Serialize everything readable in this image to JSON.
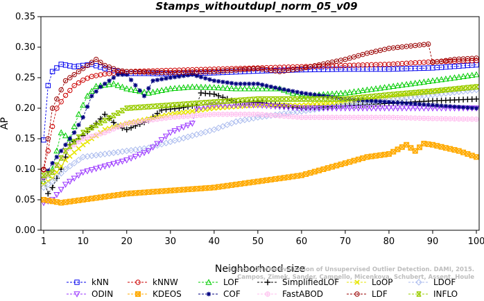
{
  "chart_data": {
    "type": "line",
    "title": "Stamps_withoutdupl_norm_05_v09",
    "xlabel": "Neighborhood size",
    "ylabel": "AP",
    "xlim": [
      1,
      100
    ],
    "ylim": [
      0,
      0.35
    ],
    "x_ticks": [
      1,
      10,
      20,
      30,
      40,
      50,
      60,
      70,
      80,
      90,
      100
    ],
    "y_ticks": [
      "0.00",
      "0.05",
      "0.10",
      "0.15",
      "0.20",
      "0.25",
      "0.30",
      "0.35"
    ],
    "grid": false,
    "legend_position": "bottom",
    "watermark": [
      "Source: On the Evaluation of Unsupervised Outlier Detection. DAMI, 2015.",
      "Campos, Zimek, Sander, Campello, Micenkova, Schubert, Assent, Houle"
    ],
    "series": [
      {
        "name": "kNN",
        "color": "#0000ee",
        "marker": "square",
        "points": [
          [
            1,
            0.148
          ],
          [
            2,
            0.237
          ],
          [
            3,
            0.26
          ],
          [
            5,
            0.272
          ],
          [
            8,
            0.268
          ],
          [
            10,
            0.27
          ],
          [
            12,
            0.272
          ],
          [
            15,
            0.265
          ],
          [
            18,
            0.26
          ],
          [
            20,
            0.257
          ],
          [
            25,
            0.257
          ],
          [
            30,
            0.256
          ],
          [
            40,
            0.258
          ],
          [
            50,
            0.261
          ],
          [
            60,
            0.263
          ],
          [
            70,
            0.264
          ],
          [
            80,
            0.264
          ],
          [
            90,
            0.266
          ],
          [
            100,
            0.271
          ]
        ]
      },
      {
        "name": "kNNW",
        "color": "#cc0000",
        "marker": "circle",
        "points": [
          [
            1,
            0.099
          ],
          [
            2,
            0.13
          ],
          [
            3,
            0.17
          ],
          [
            4,
            0.2
          ],
          [
            6,
            0.221
          ],
          [
            8,
            0.237
          ],
          [
            10,
            0.246
          ],
          [
            12,
            0.252
          ],
          [
            15,
            0.256
          ],
          [
            18,
            0.258
          ],
          [
            20,
            0.26
          ],
          [
            30,
            0.262
          ],
          [
            40,
            0.264
          ],
          [
            50,
            0.266
          ],
          [
            60,
            0.268
          ],
          [
            70,
            0.27
          ],
          [
            80,
            0.272
          ],
          [
            90,
            0.276
          ],
          [
            100,
            0.278
          ]
        ]
      },
      {
        "name": "LOF",
        "color": "#00cc00",
        "marker": "triangle-up",
        "points": [
          [
            1,
            0.08
          ],
          [
            3,
            0.1
          ],
          [
            5,
            0.16
          ],
          [
            7,
            0.15
          ],
          [
            9,
            0.19
          ],
          [
            11,
            0.22
          ],
          [
            13,
            0.236
          ],
          [
            15,
            0.238
          ],
          [
            17,
            0.24
          ],
          [
            20,
            0.232
          ],
          [
            25,
            0.225
          ],
          [
            30,
            0.232
          ],
          [
            35,
            0.235
          ],
          [
            40,
            0.234
          ],
          [
            45,
            0.232
          ],
          [
            50,
            0.232
          ],
          [
            55,
            0.232
          ],
          [
            60,
            0.22
          ],
          [
            70,
            0.225
          ],
          [
            80,
            0.235
          ],
          [
            90,
            0.245
          ],
          [
            100,
            0.255
          ]
        ]
      },
      {
        "name": "SimplifiedLOF",
        "color": "#000000",
        "marker": "plus",
        "points": [
          [
            1,
            0.085
          ],
          [
            2,
            0.06
          ],
          [
            3,
            0.07
          ],
          [
            5,
            0.1
          ],
          [
            7,
            0.14
          ],
          [
            10,
            0.155
          ],
          [
            13,
            0.175
          ],
          [
            15,
            0.19
          ],
          [
            18,
            0.17
          ],
          [
            20,
            0.165
          ],
          [
            25,
            0.18
          ],
          [
            28,
            0.197
          ],
          [
            32,
            0.2
          ],
          [
            36,
            0.205
          ],
          [
            37,
            0.225
          ],
          [
            40,
            0.223
          ],
          [
            45,
            0.21
          ],
          [
            50,
            0.21
          ],
          [
            55,
            0.205
          ],
          [
            60,
            0.2
          ],
          [
            70,
            0.204
          ],
          [
            80,
            0.208
          ],
          [
            90,
            0.212
          ],
          [
            100,
            0.215
          ]
        ]
      },
      {
        "name": "LoOP",
        "color": "#e6e600",
        "marker": "x",
        "points": [
          [
            1,
            0.075
          ],
          [
            3,
            0.085
          ],
          [
            6,
            0.115
          ],
          [
            10,
            0.14
          ],
          [
            15,
            0.165
          ],
          [
            20,
            0.175
          ],
          [
            30,
            0.19
          ],
          [
            40,
            0.2
          ],
          [
            50,
            0.205
          ],
          [
            60,
            0.205
          ],
          [
            70,
            0.21
          ],
          [
            80,
            0.218
          ],
          [
            90,
            0.226
          ],
          [
            100,
            0.235
          ]
        ]
      },
      {
        "name": "LDOF",
        "color": "#aabbee",
        "marker": "diamond",
        "points": [
          [
            1,
            0.07
          ],
          [
            3,
            0.08
          ],
          [
            6,
            0.1
          ],
          [
            10,
            0.12
          ],
          [
            15,
            0.125
          ],
          [
            20,
            0.13
          ],
          [
            25,
            0.135
          ],
          [
            30,
            0.145
          ],
          [
            35,
            0.155
          ],
          [
            40,
            0.165
          ],
          [
            45,
            0.178
          ],
          [
            50,
            0.185
          ],
          [
            60,
            0.195
          ],
          [
            70,
            0.205
          ],
          [
            80,
            0.213
          ],
          [
            90,
            0.222
          ],
          [
            100,
            0.23
          ]
        ]
      },
      {
        "name": "ODIN",
        "color": "#9933ff",
        "marker": "triangle-down",
        "points": [
          [
            1,
            0.045
          ],
          [
            3,
            0.05
          ],
          [
            6,
            0.075
          ],
          [
            10,
            0.095
          ],
          [
            15,
            0.105
          ],
          [
            20,
            0.115
          ],
          [
            25,
            0.13
          ],
          [
            30,
            0.16
          ],
          [
            35,
            0.175
          ],
          [
            36,
            0.2
          ],
          [
            40,
            0.205
          ],
          [
            50,
            0.205
          ],
          [
            60,
            0.2
          ],
          [
            70,
            0.2
          ],
          [
            80,
            0.2
          ],
          [
            90,
            0.2
          ],
          [
            100,
            0.2
          ]
        ]
      },
      {
        "name": "KDEOS",
        "color": "#ffaa00",
        "marker": "square-x",
        "points": [
          [
            1,
            0.05
          ],
          [
            5,
            0.045
          ],
          [
            10,
            0.05
          ],
          [
            15,
            0.055
          ],
          [
            20,
            0.06
          ],
          [
            30,
            0.065
          ],
          [
            40,
            0.07
          ],
          [
            50,
            0.08
          ],
          [
            60,
            0.09
          ],
          [
            65,
            0.1
          ],
          [
            70,
            0.11
          ],
          [
            75,
            0.12
          ],
          [
            80,
            0.125
          ],
          [
            84,
            0.14
          ],
          [
            86,
            0.13
          ],
          [
            88,
            0.142
          ],
          [
            90,
            0.14
          ],
          [
            93,
            0.135
          ],
          [
            96,
            0.13
          ],
          [
            100,
            0.12
          ]
        ]
      },
      {
        "name": "COF",
        "color": "#000080",
        "marker": "star",
        "points": [
          [
            1,
            0.085
          ],
          [
            3,
            0.11
          ],
          [
            5,
            0.13
          ],
          [
            8,
            0.16
          ],
          [
            10,
            0.185
          ],
          [
            12,
            0.22
          ],
          [
            14,
            0.235
          ],
          [
            16,
            0.245
          ],
          [
            18,
            0.255
          ],
          [
            20,
            0.255
          ],
          [
            24,
            0.22
          ],
          [
            26,
            0.245
          ],
          [
            30,
            0.25
          ],
          [
            35,
            0.255
          ],
          [
            40,
            0.245
          ],
          [
            45,
            0.24
          ],
          [
            50,
            0.24
          ],
          [
            55,
            0.232
          ],
          [
            60,
            0.225
          ],
          [
            70,
            0.215
          ],
          [
            80,
            0.21
          ],
          [
            90,
            0.205
          ],
          [
            100,
            0.2
          ]
        ]
      },
      {
        "name": "FastABOD",
        "color": "#ffbbee",
        "marker": "circle-plus",
        "points": [
          [
            1,
            0.085
          ],
          [
            3,
            0.095
          ],
          [
            6,
            0.13
          ],
          [
            10,
            0.15
          ],
          [
            15,
            0.16
          ],
          [
            20,
            0.175
          ],
          [
            25,
            0.18
          ],
          [
            30,
            0.185
          ],
          [
            40,
            0.19
          ],
          [
            50,
            0.19
          ],
          [
            60,
            0.185
          ],
          [
            70,
            0.185
          ],
          [
            80,
            0.185
          ],
          [
            90,
            0.183
          ],
          [
            100,
            0.182
          ]
        ]
      },
      {
        "name": "LDF",
        "color": "#990000",
        "marker": "circle-dot",
        "points": [
          [
            1,
            0.1
          ],
          [
            3,
            0.2
          ],
          [
            6,
            0.245
          ],
          [
            10,
            0.265
          ],
          [
            13,
            0.28
          ],
          [
            15,
            0.27
          ],
          [
            18,
            0.262
          ],
          [
            20,
            0.26
          ],
          [
            30,
            0.258
          ],
          [
            40,
            0.26
          ],
          [
            50,
            0.265
          ],
          [
            55,
            0.26
          ],
          [
            60,
            0.265
          ],
          [
            70,
            0.28
          ],
          [
            75,
            0.29
          ],
          [
            80,
            0.298
          ],
          [
            85,
            0.302
          ],
          [
            89,
            0.305
          ],
          [
            90,
            0.275
          ],
          [
            95,
            0.28
          ],
          [
            100,
            0.282
          ]
        ]
      },
      {
        "name": "INFLO",
        "color": "#99cc00",
        "marker": "hourglass",
        "points": [
          [
            1,
            0.09
          ],
          [
            3,
            0.095
          ],
          [
            6,
            0.13
          ],
          [
            10,
            0.16
          ],
          [
            15,
            0.18
          ],
          [
            20,
            0.2
          ],
          [
            30,
            0.205
          ],
          [
            40,
            0.21
          ],
          [
            50,
            0.215
          ],
          [
            60,
            0.215
          ],
          [
            70,
            0.215
          ],
          [
            80,
            0.222
          ],
          [
            90,
            0.228
          ],
          [
            100,
            0.235
          ]
        ]
      }
    ]
  }
}
